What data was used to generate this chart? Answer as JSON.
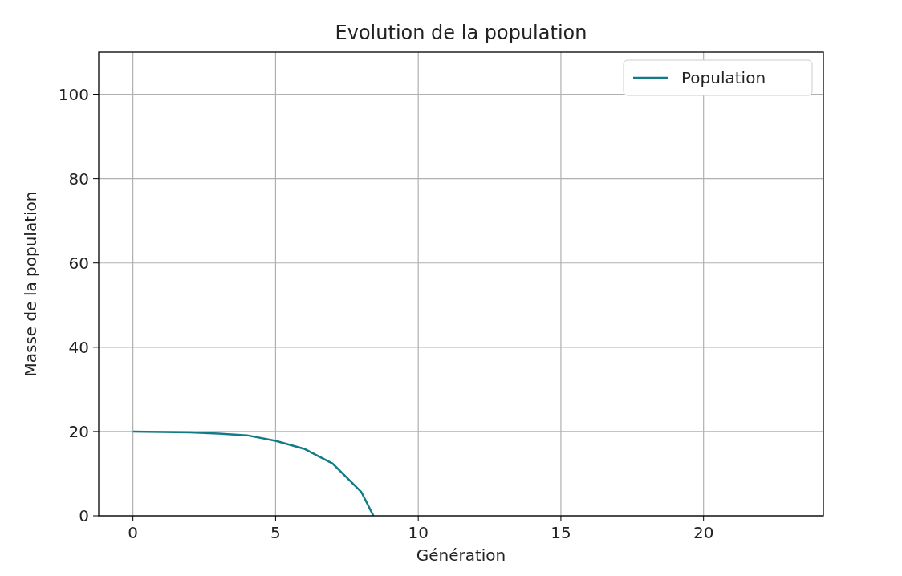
{
  "chart_data": {
    "type": "line",
    "title": "Evolution de la population",
    "xlabel": "Génération",
    "ylabel": "Masse de la population",
    "x": [
      0,
      1,
      2,
      3,
      4,
      5,
      6,
      7,
      8,
      8.43
    ],
    "series": [
      {
        "name": "Population",
        "color": "#137a87",
        "values": [
          20.0,
          19.9,
          19.8,
          19.5,
          19.1,
          17.8,
          15.9,
          12.4,
          5.7,
          0
        ]
      }
    ],
    "xlim": [
      -1.2,
      24.2
    ],
    "ylim": [
      0,
      110
    ],
    "xticks": [
      0,
      5,
      10,
      15,
      20
    ],
    "yticks": [
      0,
      20,
      40,
      60,
      80,
      100
    ],
    "grid": true,
    "legend": "top right",
    "line_style": "solid",
    "marker": "none"
  }
}
